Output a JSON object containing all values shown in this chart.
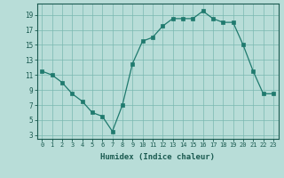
{
  "x": [
    0,
    1,
    2,
    3,
    4,
    5,
    6,
    7,
    8,
    9,
    10,
    11,
    12,
    13,
    14,
    15,
    16,
    17,
    18,
    19,
    20,
    21,
    22,
    23
  ],
  "y": [
    11.5,
    11.0,
    10.0,
    8.5,
    7.5,
    6.0,
    5.5,
    3.5,
    7.0,
    12.5,
    15.5,
    16.0,
    17.5,
    18.5,
    18.5,
    18.5,
    19.5,
    18.5,
    18.0,
    18.0,
    15.0,
    11.5,
    8.5,
    8.5
  ],
  "line_color": "#1f7a6e",
  "marker_color": "#1f7a6e",
  "bg_color": "#b8ddd8",
  "grid_color": "#7ab8b0",
  "xlabel": "Humidex (Indice chaleur)",
  "ylabel_ticks": [
    3,
    5,
    7,
    9,
    11,
    13,
    15,
    17,
    19
  ],
  "xlim": [
    -0.5,
    23.5
  ],
  "ylim": [
    2.5,
    20.5
  ],
  "xticks": [
    0,
    1,
    2,
    3,
    4,
    5,
    6,
    7,
    8,
    9,
    10,
    11,
    12,
    13,
    14,
    15,
    16,
    17,
    18,
    19,
    20,
    21,
    22,
    23
  ],
  "font_color": "#1a5a50"
}
